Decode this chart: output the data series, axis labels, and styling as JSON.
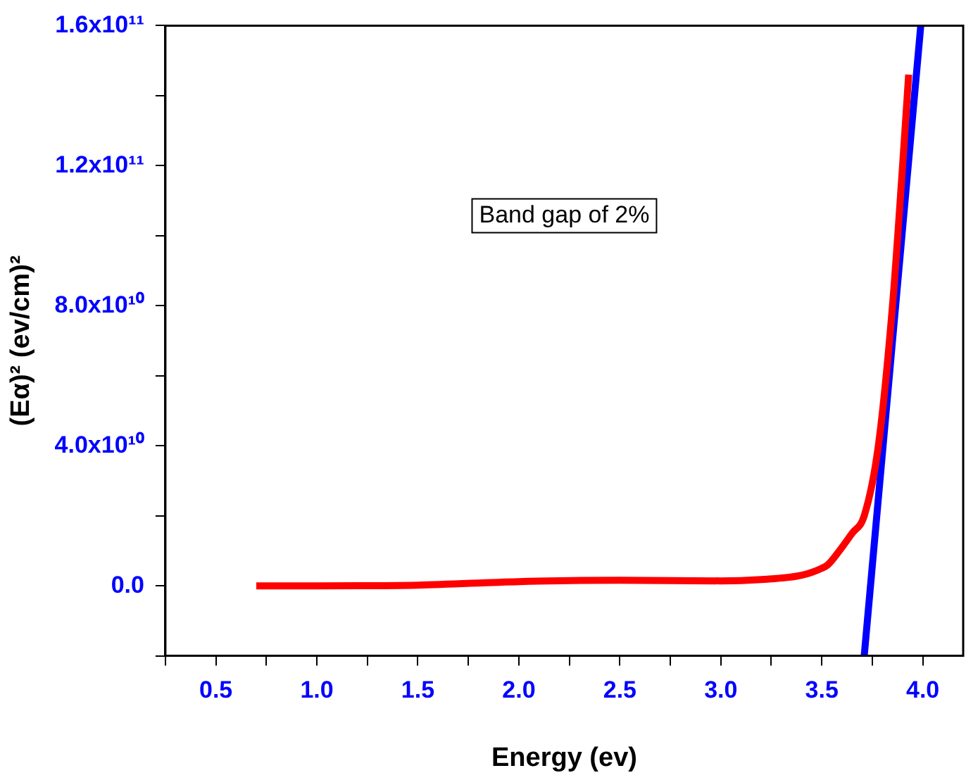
{
  "chart_data": {
    "type": "line",
    "xlabel": "Energy (ev)",
    "ylabel": "(Eα)² (ev/cm)²",
    "annotations": [
      "Band gap of 2%"
    ],
    "series": [
      {
        "color": "#ff0000",
        "x": [
          0.7,
          1.0,
          1.5,
          2.0,
          2.5,
          3.0,
          3.2,
          3.4,
          3.5,
          3.53,
          3.6,
          3.65,
          3.71,
          3.78,
          3.85,
          3.9,
          3.93
        ],
        "values": [
          0,
          0,
          200000000.0,
          1200000000.0,
          1600000000.0,
          1400000000.0,
          1800000000.0,
          3000000000.0,
          5000000000.0,
          6000000000.0,
          11000000000.0,
          15000000000.0,
          20000000000.0,
          40000000000.0,
          80000000000.0,
          120000000000.0,
          146000000000.0
        ]
      },
      {
        "color": "#0000ff",
        "x": [
          3.71,
          3.99
        ],
        "values": [
          -20000000000.0,
          160000000000.0
        ]
      }
    ],
    "xlim": [
      0.25,
      4.2
    ],
    "ylim": [
      -20000000000.0,
      160000000000.0
    ],
    "xticks": [
      {
        "value": 0.25,
        "label": null
      },
      0.5,
      {
        "value": 0.75,
        "label": null
      },
      {
        "value": 1,
        "label": "1.0"
      },
      {
        "value": 1.25,
        "label": null
      },
      1.5,
      {
        "value": 1.75,
        "label": null
      },
      {
        "value": 2,
        "label": "2.0"
      },
      {
        "value": 2.25,
        "label": null
      },
      2.5,
      {
        "value": 2.75,
        "label": null
      },
      {
        "value": 3,
        "label": "3.0"
      },
      {
        "value": 3.25,
        "label": null
      },
      3.5,
      {
        "value": 3.75,
        "label": null
      },
      {
        "value": 4,
        "label": "4.0"
      }
    ],
    "yticks": [
      {
        "value": -20000000000.0,
        "label": null
      },
      {
        "value": 0,
        "label": "0.0"
      },
      {
        "value": 20000000000.0,
        "label": null
      },
      {
        "value": 40000000000.0,
        "label": "4.0x10¹⁰"
      },
      {
        "value": 60000000000.0,
        "label": null
      },
      {
        "value": 80000000000.0,
        "label": "8.0x10¹⁰"
      },
      {
        "value": 100000000000.0,
        "label": null
      },
      {
        "value": 120000000000.0,
        "label": "1.2x10¹¹"
      },
      {
        "value": 140000000000.0,
        "label": null
      },
      {
        "value": 160000000000.0,
        "label": "1.6x10¹¹"
      }
    ],
    "grid": false,
    "legend": false,
    "marker": "none",
    "line_style": "solid"
  }
}
